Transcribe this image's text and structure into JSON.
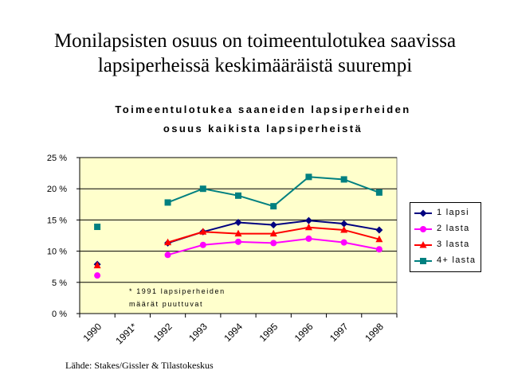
{
  "slide": {
    "title_lines": [
      "Monilapsisten osuus on toimeentulotukea saavissa",
      "lapsiperheissä keskimääräistä suurempi"
    ],
    "source": "Lähde: Stakes/Gissler & Tilastokeskus"
  },
  "chart_data": {
    "type": "line",
    "title_lines": [
      "Toimeentulotukea saaneiden lapsiperheiden",
      "osuus kaikista lapsiperheistä"
    ],
    "categories": [
      "1990",
      "1991*",
      "1992",
      "1993",
      "1994",
      "1995",
      "1996",
      "1997",
      "1998"
    ],
    "y_tick_labels": [
      "0 %",
      "5 %",
      "10 %",
      "15 %",
      "20 %",
      "25 %"
    ],
    "ylim": [
      0,
      25
    ],
    "grid": true,
    "plot_background": "#ffffcc",
    "legend_position": "right",
    "annotation_lines": [
      "* 1991 lapsiperheiden",
      "määrät puuttuvat"
    ],
    "series": [
      {
        "name": "1 lapsi",
        "color": "#000080",
        "marker": "diamond",
        "values": [
          7.9,
          null,
          11.3,
          13.1,
          14.6,
          14.2,
          14.9,
          14.4,
          13.4
        ]
      },
      {
        "name": "2 lasta",
        "color": "#ff00ff",
        "marker": "circle",
        "values": [
          6.1,
          null,
          9.4,
          11.0,
          11.5,
          11.3,
          12.0,
          11.4,
          10.3
        ]
      },
      {
        "name": "3 lasta",
        "color": "#ff0000",
        "marker": "triangle",
        "values": [
          7.7,
          null,
          11.4,
          13.1,
          12.8,
          12.8,
          13.8,
          13.4,
          11.9
        ]
      },
      {
        "name": "4+ lasta",
        "color": "#008080",
        "marker": "square",
        "values": [
          13.9,
          null,
          17.8,
          20.0,
          18.9,
          17.2,
          21.9,
          21.5,
          19.4
        ]
      }
    ]
  }
}
